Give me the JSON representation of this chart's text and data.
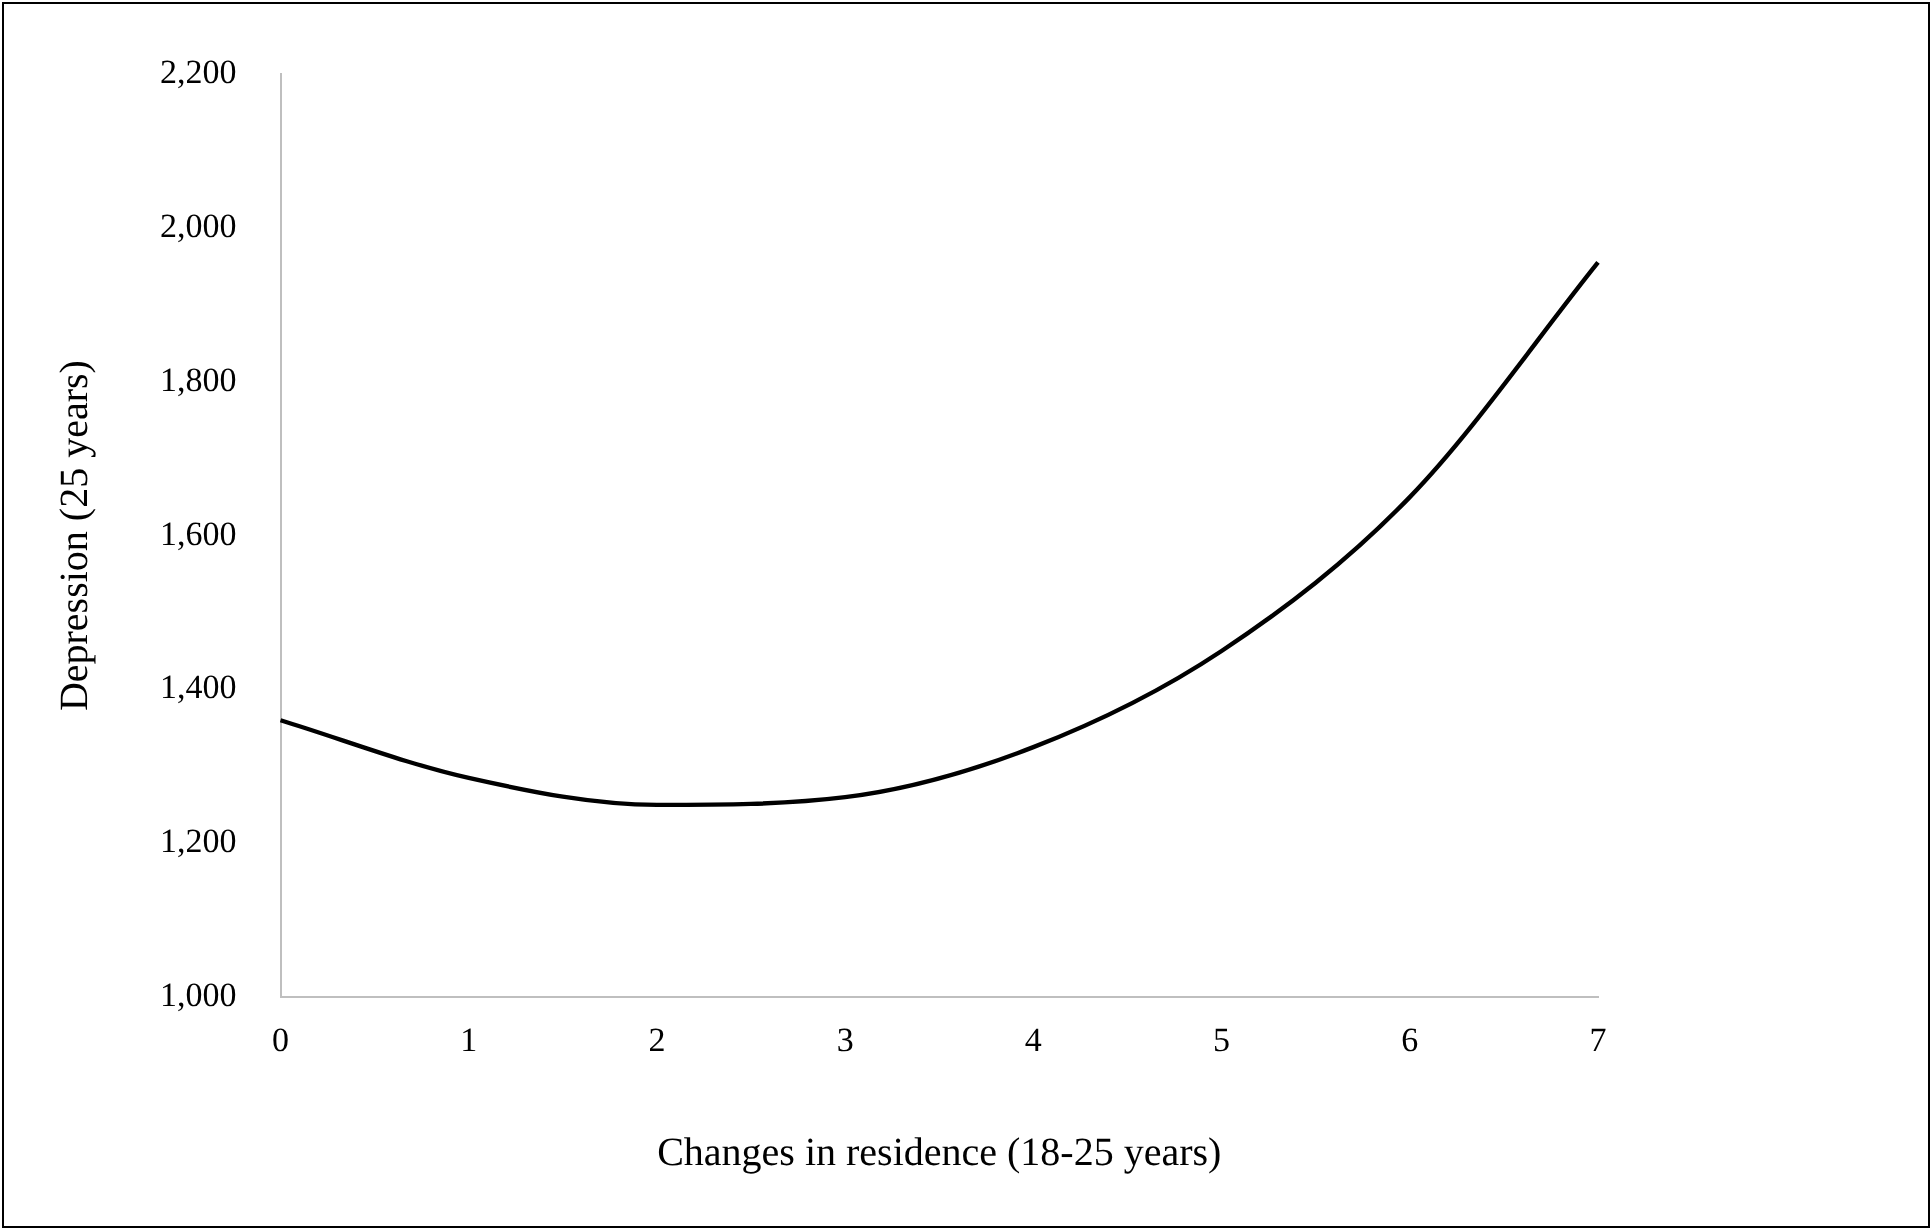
{
  "chart_data": {
    "type": "line",
    "xlabel": "Changes in residence (18-25 years)",
    "ylabel": "Depression (25 years)",
    "categories": [
      "0",
      "1",
      "2",
      "3",
      "4",
      "5",
      "6",
      "7"
    ],
    "series": [
      {
        "color": "#000000",
        "values": [
          1360,
          1285,
          1250,
          1260,
          1325,
          1450,
          1650,
          1955
        ]
      }
    ],
    "ylim": [
      1000,
      2200
    ],
    "yticks": [
      {
        "value": 1000,
        "label": "1,000"
      },
      {
        "value": 1200,
        "label": "1,200"
      },
      {
        "value": 1400,
        "label": "1,400"
      },
      {
        "value": 1600,
        "label": "1,600"
      },
      {
        "value": 1800,
        "label": "1,800"
      },
      {
        "value": 2000,
        "label": "2,000"
      },
      {
        "value": 2200,
        "label": "2,200"
      }
    ],
    "grid": false,
    "legend": false,
    "marker": "none",
    "line_style": "solid"
  }
}
